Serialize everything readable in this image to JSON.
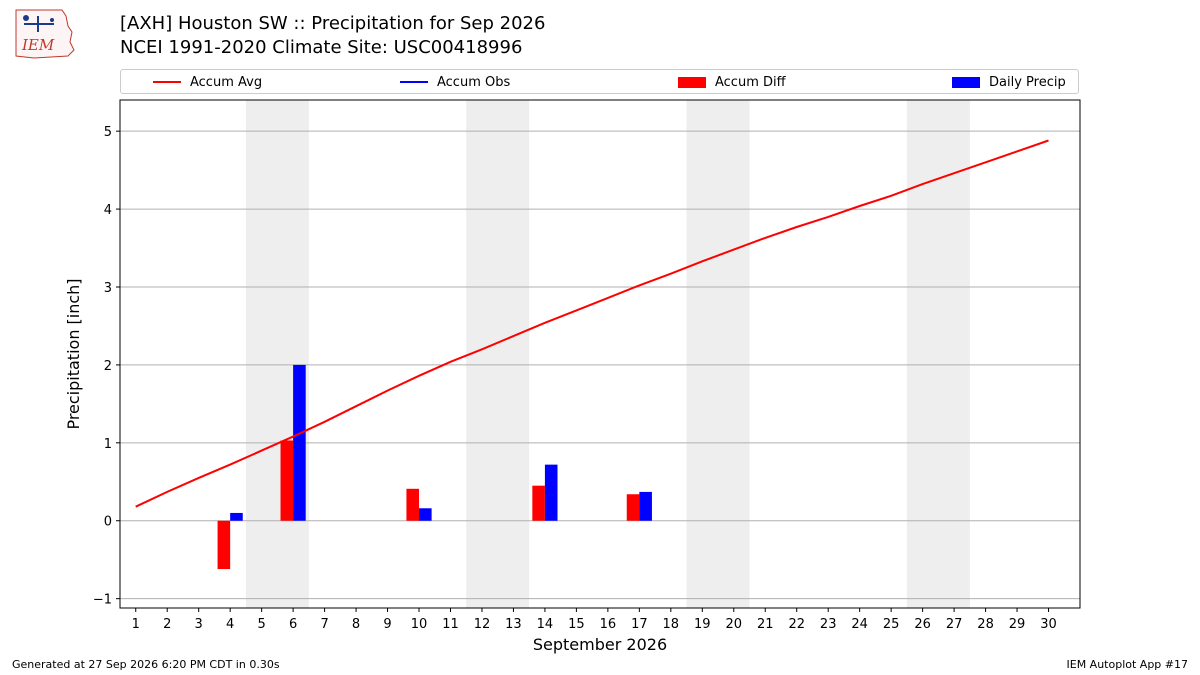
{
  "header": {
    "title_line1": "[AXH] Houston SW :: Precipitation for Sep 2026",
    "title_line2": "NCEI 1991-2020 Climate Site: USC00418996",
    "logo_text": "IEM"
  },
  "legend": {
    "items": [
      {
        "label": "Accum Avg",
        "color": "#ff0000",
        "kind": "line"
      },
      {
        "label": "Accum Obs",
        "color": "#0000ff",
        "kind": "line"
      },
      {
        "label": "Accum Diff",
        "color": "#ff0000",
        "kind": "box"
      },
      {
        "label": "Daily Precip",
        "color": "#0000ff",
        "kind": "box"
      }
    ]
  },
  "footer": {
    "left": "Generated at 27 Sep 2026 6:20 PM CDT in 0.30s",
    "right": "IEM Autoplot App #17"
  },
  "chart_data": {
    "type": "bar",
    "xlabel": "September 2026",
    "ylabel": "Precipitation [inch]",
    "xlim": [
      0.5,
      31
    ],
    "ylim": [
      -1.12,
      5.4
    ],
    "x_ticks": [
      1,
      2,
      3,
      4,
      5,
      6,
      7,
      8,
      9,
      10,
      11,
      12,
      13,
      14,
      15,
      16,
      17,
      18,
      19,
      20,
      21,
      22,
      23,
      24,
      25,
      26,
      27,
      28,
      29,
      30
    ],
    "y_ticks": [
      -1,
      0,
      1,
      2,
      3,
      4,
      5
    ],
    "grid": "horizontal",
    "weekend_shading": [
      [
        5,
        6
      ],
      [
        12,
        13
      ],
      [
        19,
        20
      ],
      [
        26,
        27
      ]
    ],
    "accum_avg": {
      "name": "Accum Avg",
      "color": "#ff0000",
      "x": [
        1,
        2,
        3,
        4,
        5,
        6,
        7,
        8,
        9,
        10,
        11,
        12,
        13,
        14,
        15,
        16,
        17,
        18,
        19,
        20,
        21,
        22,
        23,
        24,
        25,
        26,
        27,
        28,
        29,
        30
      ],
      "values": [
        0.18,
        0.37,
        0.55,
        0.72,
        0.9,
        1.08,
        1.27,
        1.47,
        1.67,
        1.86,
        2.04,
        2.2,
        2.37,
        2.54,
        2.7,
        2.86,
        3.02,
        3.17,
        3.33,
        3.48,
        3.63,
        3.77,
        3.9,
        4.04,
        4.17,
        4.32,
        4.46,
        4.6,
        4.74,
        4.88
      ]
    },
    "accum_diff": {
      "name": "Accum Diff",
      "color": "#ff0000",
      "x": [
        4,
        6,
        10,
        14,
        17
      ],
      "values": [
        -0.62,
        1.03,
        0.41,
        0.45,
        0.34
      ]
    },
    "daily_precip": {
      "name": "Daily Precip",
      "color": "#0000ff",
      "x": [
        4,
        6,
        10,
        14,
        17
      ],
      "values": [
        0.1,
        2.0,
        0.16,
        0.72,
        0.37
      ]
    }
  }
}
